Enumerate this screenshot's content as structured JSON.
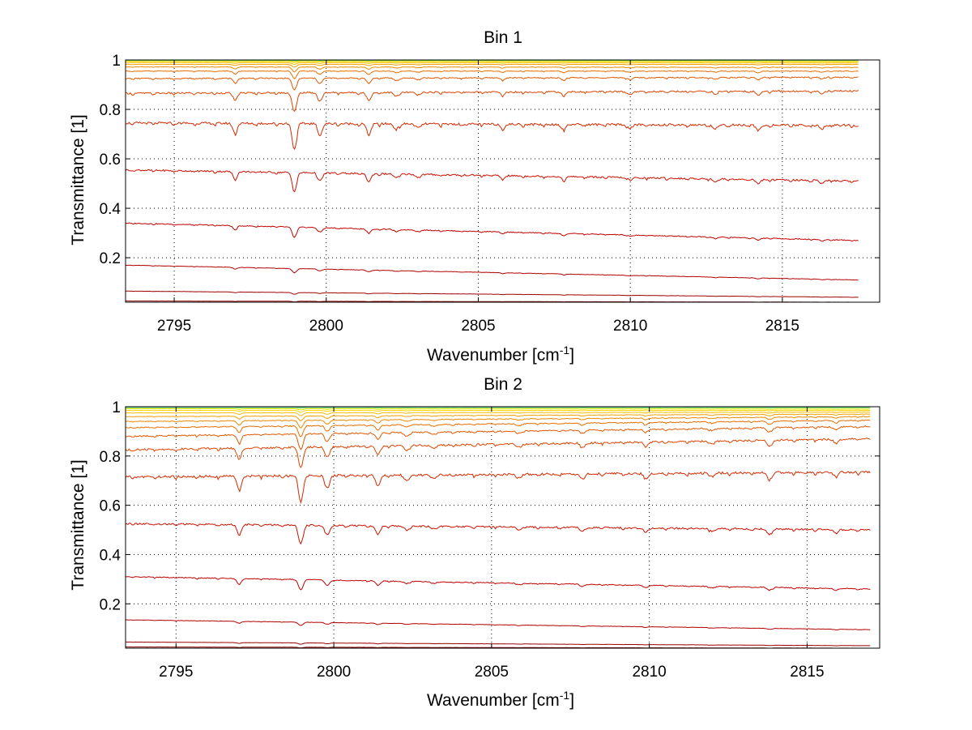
{
  "chart_data": [
    {
      "type": "line",
      "title": "Bin 1",
      "xlabel": "Wavenumber [cm",
      "xlabel_sup": "-1",
      "xlabel_end": "]",
      "ylabel": "Transmittance [1]",
      "xlim": [
        2793.4,
        2818.2
      ],
      "ylim": [
        0.02,
        1.0
      ],
      "xticks": [
        2795,
        2800,
        2805,
        2810,
        2815
      ],
      "xtick_labels": [
        "2795",
        "2800",
        "2805",
        "2810",
        "2815"
      ],
      "yticks": [
        0.2,
        0.4,
        0.6,
        0.8,
        1.0
      ],
      "ytick_labels": [
        "0.2",
        "0.4",
        "0.6",
        "0.8",
        "1"
      ],
      "grid": true,
      "x_end": 2817.5,
      "absorption_lines": [
        {
          "x": 2797.0,
          "depth": 0.05
        },
        {
          "x": 2798.95,
          "depth": 0.14
        },
        {
          "x": 2799.8,
          "depth": 0.06
        },
        {
          "x": 2801.4,
          "depth": 0.06
        },
        {
          "x": 2802.3,
          "depth": 0.03
        },
        {
          "x": 2803.0,
          "depth": 0.02
        },
        {
          "x": 2805.8,
          "depth": 0.02
        },
        {
          "x": 2807.8,
          "depth": 0.025
        },
        {
          "x": 2810.0,
          "depth": 0.02
        },
        {
          "x": 2812.8,
          "depth": 0.02
        },
        {
          "x": 2814.2,
          "depth": 0.03
        },
        {
          "x": 2816.3,
          "depth": 0.02
        }
      ],
      "series": [
        {
          "color": "#8b0000",
          "y_start": 0.025,
          "y_end": 0.02,
          "strength": 0.02
        },
        {
          "color": "#9c0000",
          "y_start": 0.065,
          "y_end": 0.04,
          "strength": 0.05
        },
        {
          "color": "#b00000",
          "y_start": 0.17,
          "y_end": 0.11,
          "strength": 0.12
        },
        {
          "color": "#c00000",
          "y_start": 0.34,
          "y_end": 0.27,
          "strength": 0.3
        },
        {
          "color": "#cc1100",
          "y_start": 0.555,
          "y_end": 0.51,
          "strength": 0.55
        },
        {
          "color": "#d42a00",
          "y_start": 0.745,
          "y_end": 0.735,
          "strength": 0.75
        },
        {
          "color": "#dd4400",
          "y_start": 0.865,
          "y_end": 0.875,
          "strength": 0.55
        },
        {
          "color": "#e25800",
          "y_start": 0.925,
          "y_end": 0.93,
          "strength": 0.35
        },
        {
          "color": "#e86e00",
          "y_start": 0.955,
          "y_end": 0.955,
          "strength": 0.22
        },
        {
          "color": "#ee8800",
          "y_start": 0.972,
          "y_end": 0.97,
          "strength": 0.14
        },
        {
          "color": "#f4a000",
          "y_start": 0.982,
          "y_end": 0.982,
          "strength": 0.08
        },
        {
          "color": "#f8bc00",
          "y_start": 0.989,
          "y_end": 0.988,
          "strength": 0.05
        },
        {
          "color": "#fbd400",
          "y_start": 0.994,
          "y_end": 0.993,
          "strength": 0.03
        },
        {
          "color": "#e0e800",
          "y_start": 0.997,
          "y_end": 0.996,
          "strength": 0.02
        },
        {
          "color": "#a8e040",
          "y_start": 0.998,
          "y_end": 0.998,
          "strength": 0.01
        },
        {
          "color": "#40d8b0",
          "y_start": 0.999,
          "y_end": 0.999,
          "strength": 0.005
        }
      ]
    },
    {
      "type": "line",
      "title": "Bin 2",
      "xlabel": "Wavenumber [cm",
      "xlabel_sup": "-1",
      "xlabel_end": "]",
      "ylabel": "Transmittance [1]",
      "xlim": [
        2793.4,
        2817.3
      ],
      "ylim": [
        0.02,
        1.0
      ],
      "xticks": [
        2795,
        2800,
        2805,
        2810,
        2815
      ],
      "xtick_labels": [
        "2795",
        "2800",
        "2805",
        "2810",
        "2815"
      ],
      "yticks": [
        0.2,
        0.4,
        0.6,
        0.8,
        1.0
      ],
      "ytick_labels": [
        "0.2",
        "0.4",
        "0.6",
        "0.8",
        "1"
      ],
      "grid": true,
      "x_end": 2817.0,
      "absorption_lines": [
        {
          "x": 2797.0,
          "depth": 0.07
        },
        {
          "x": 2798.95,
          "depth": 0.14
        },
        {
          "x": 2799.8,
          "depth": 0.07
        },
        {
          "x": 2801.4,
          "depth": 0.06
        },
        {
          "x": 2802.3,
          "depth": 0.03
        },
        {
          "x": 2803.2,
          "depth": 0.02
        },
        {
          "x": 2805.9,
          "depth": 0.02
        },
        {
          "x": 2807.9,
          "depth": 0.025
        },
        {
          "x": 2809.9,
          "depth": 0.025
        },
        {
          "x": 2812.0,
          "depth": 0.02
        },
        {
          "x": 2813.8,
          "depth": 0.04
        },
        {
          "x": 2815.9,
          "depth": 0.02
        }
      ],
      "series": [
        {
          "color": "#8b0000",
          "y_start": 0.025,
          "y_end": 0.02,
          "strength": 0.02
        },
        {
          "color": "#9c0000",
          "y_start": 0.045,
          "y_end": 0.03,
          "strength": 0.04
        },
        {
          "color": "#b00000",
          "y_start": 0.135,
          "y_end": 0.095,
          "strength": 0.1
        },
        {
          "color": "#c00000",
          "y_start": 0.31,
          "y_end": 0.26,
          "strength": 0.3
        },
        {
          "color": "#cc1100",
          "y_start": 0.525,
          "y_end": 0.5,
          "strength": 0.55
        },
        {
          "color": "#d42a00",
          "y_start": 0.715,
          "y_end": 0.735,
          "strength": 0.75
        },
        {
          "color": "#dd4400",
          "y_start": 0.825,
          "y_end": 0.87,
          "strength": 0.6
        },
        {
          "color": "#e25800",
          "y_start": 0.88,
          "y_end": 0.92,
          "strength": 0.45
        },
        {
          "color": "#e86e00",
          "y_start": 0.915,
          "y_end": 0.945,
          "strength": 0.32
        },
        {
          "color": "#ee8800",
          "y_start": 0.94,
          "y_end": 0.96,
          "strength": 0.22
        },
        {
          "color": "#f4a000",
          "y_start": 0.96,
          "y_end": 0.97,
          "strength": 0.14
        },
        {
          "color": "#f8bc00",
          "y_start": 0.975,
          "y_end": 0.978,
          "strength": 0.09
        },
        {
          "color": "#fbd400",
          "y_start": 0.985,
          "y_end": 0.985,
          "strength": 0.05
        },
        {
          "color": "#e0e800",
          "y_start": 0.992,
          "y_end": 0.99,
          "strength": 0.03
        },
        {
          "color": "#a8e040",
          "y_start": 0.996,
          "y_end": 0.995,
          "strength": 0.015
        },
        {
          "color": "#40d8b0",
          "y_start": 0.998,
          "y_end": 0.998,
          "strength": 0.008
        }
      ]
    }
  ]
}
